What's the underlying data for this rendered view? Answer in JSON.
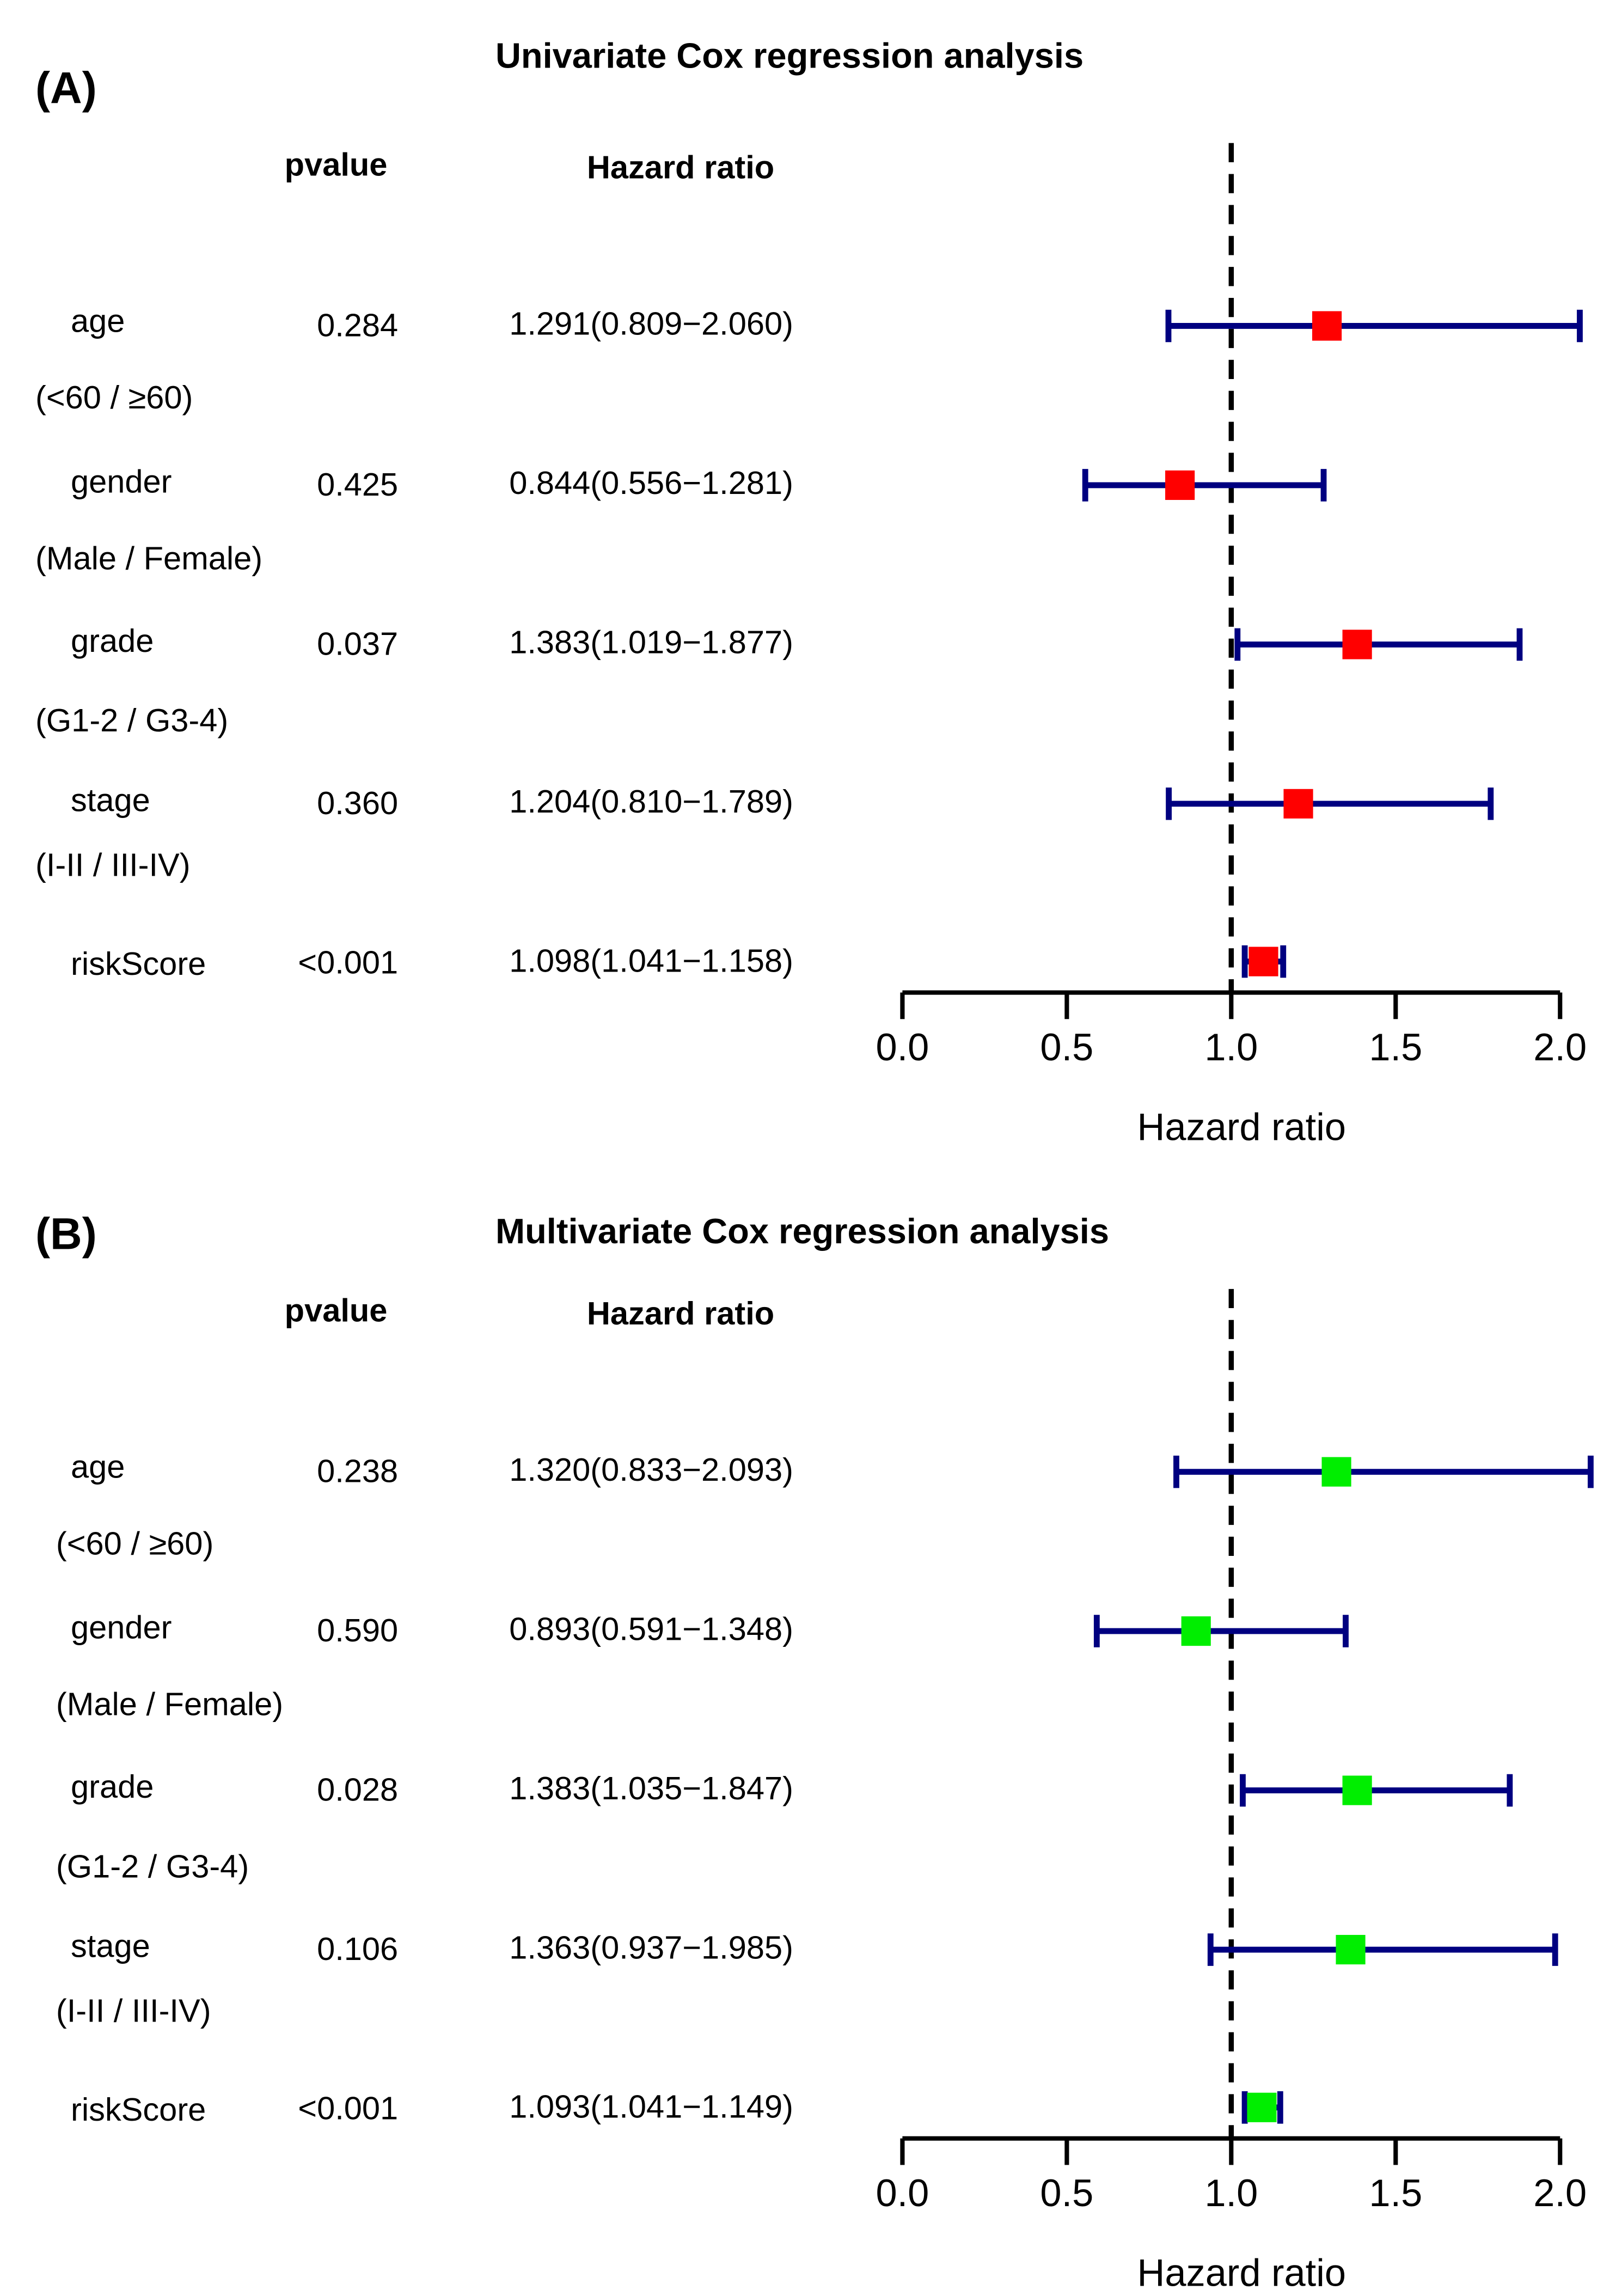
{
  "chart_data": [
    {
      "type": "forest",
      "panel_label": "(A)",
      "title": "Univariate Cox regression analysis",
      "column_headers": {
        "pvalue": "pvalue",
        "hazard_ratio": "Hazard ratio"
      },
      "xlabel": "Hazard ratio",
      "xlim": [
        0,
        2
      ],
      "ticks": [
        0.0,
        0.5,
        1.0,
        1.5,
        2.0
      ],
      "tick_labels": [
        "0.0",
        "0.5",
        "1.0",
        "1.5",
        "2.0"
      ],
      "reference_line": 1.0,
      "marker_color": "#ff0000",
      "ci_color": "#000080",
      "rows": [
        {
          "name": "age",
          "sublabel": "(<60 / ≥60)",
          "pvalue": "0.284",
          "hr_text": "1.291(0.809−2.060)",
          "hr": 1.291,
          "lower": 0.809,
          "upper": 2.06
        },
        {
          "name": "gender",
          "sublabel": "(Male / Female)",
          "pvalue": "0.425",
          "hr_text": "0.844(0.556−1.281)",
          "hr": 0.844,
          "lower": 0.556,
          "upper": 1.281
        },
        {
          "name": "grade",
          "sublabel": "(G1-2 / G3-4)",
          "pvalue": "0.037",
          "hr_text": "1.383(1.019−1.877)",
          "hr": 1.383,
          "lower": 1.019,
          "upper": 1.877
        },
        {
          "name": "stage",
          "sublabel": "(I-II / III-IV)",
          "pvalue": "0.360",
          "hr_text": "1.204(0.810−1.789)",
          "hr": 1.204,
          "lower": 0.81,
          "upper": 1.789
        },
        {
          "name": "riskScore",
          "sublabel": "",
          "pvalue": "<0.001",
          "hr_text": "1.098(1.041−1.158)",
          "hr": 1.098,
          "lower": 1.041,
          "upper": 1.158
        }
      ]
    },
    {
      "type": "forest",
      "panel_label": "(B)",
      "title": "Multivariate Cox regression analysis",
      "column_headers": {
        "pvalue": "pvalue",
        "hazard_ratio": "Hazard ratio"
      },
      "xlabel": "Hazard ratio",
      "xlim": [
        0,
        2
      ],
      "ticks": [
        0.0,
        0.5,
        1.0,
        1.5,
        2.0
      ],
      "tick_labels": [
        "0.0",
        "0.5",
        "1.0",
        "1.5",
        "2.0"
      ],
      "reference_line": 1.0,
      "marker_color": "#00ee00",
      "ci_color": "#000080",
      "rows": [
        {
          "name": "age",
          "sublabel": "(<60 / ≥60)",
          "pvalue": "0.238",
          "hr_text": "1.320(0.833−2.093)",
          "hr": 1.32,
          "lower": 0.833,
          "upper": 2.093
        },
        {
          "name": "gender",
          "sublabel": "(Male / Female)",
          "pvalue": "0.590",
          "hr_text": "0.893(0.591−1.348)",
          "hr": 0.893,
          "lower": 0.591,
          "upper": 1.348
        },
        {
          "name": "grade",
          "sublabel": "(G1-2 / G3-4)",
          "pvalue": "0.028",
          "hr_text": "1.383(1.035−1.847)",
          "hr": 1.383,
          "lower": 1.035,
          "upper": 1.847
        },
        {
          "name": "stage",
          "sublabel": "(I-II / III-IV)",
          "pvalue": "0.106",
          "hr_text": "1.363(0.937−1.985)",
          "hr": 1.363,
          "lower": 0.937,
          "upper": 1.985
        },
        {
          "name": "riskScore",
          "sublabel": "",
          "pvalue": "<0.001",
          "hr_text": "1.093(1.041−1.149)",
          "hr": 1.093,
          "lower": 1.041,
          "upper": 1.149
        }
      ]
    }
  ]
}
